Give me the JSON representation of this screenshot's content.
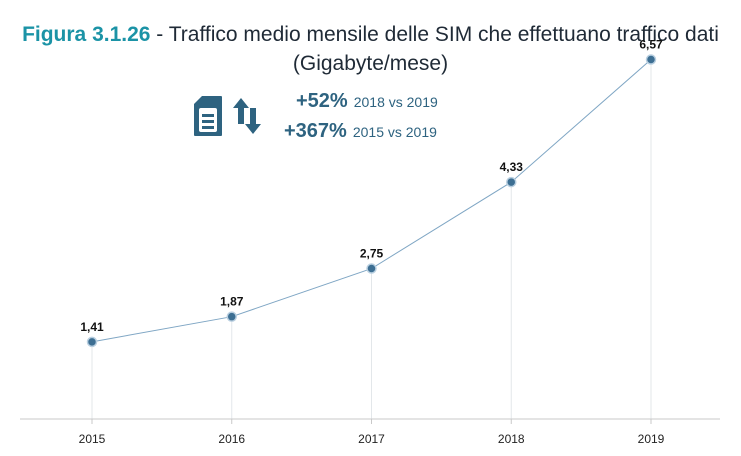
{
  "header": {
    "figure_number": "Figura 3.1.26",
    "title_text": " - Traffico medio mensile delle SIM che effettuano traffico dati",
    "subtitle": "(Gigabyte/mese)"
  },
  "stats": [
    {
      "pct": "+52%",
      "comparison": "2018 vs 2019"
    },
    {
      "pct": "+367%",
      "comparison": "2015 vs 2019"
    }
  ],
  "icons": {
    "sim": "sim-card-icon",
    "traffic": "up-down-arrows-icon",
    "color": "#2e6380"
  },
  "chart_data": {
    "type": "line",
    "title": "Figura 3.1.26 - Traffico medio mensile delle SIM che effettuano traffico dati",
    "subtitle": "(Gigabyte/mese)",
    "categories": [
      "2015",
      "2016",
      "2017",
      "2018",
      "2019"
    ],
    "values": [
      1.41,
      1.87,
      2.75,
      4.33,
      6.57
    ],
    "value_labels": [
      "1,41",
      "1,87",
      "2,75",
      "4,33",
      "6,57"
    ],
    "ylim": [
      0,
      7
    ],
    "grid": "vertical drop lines",
    "line_color": "#7fa6c4",
    "marker_color": "#3d6f93"
  }
}
